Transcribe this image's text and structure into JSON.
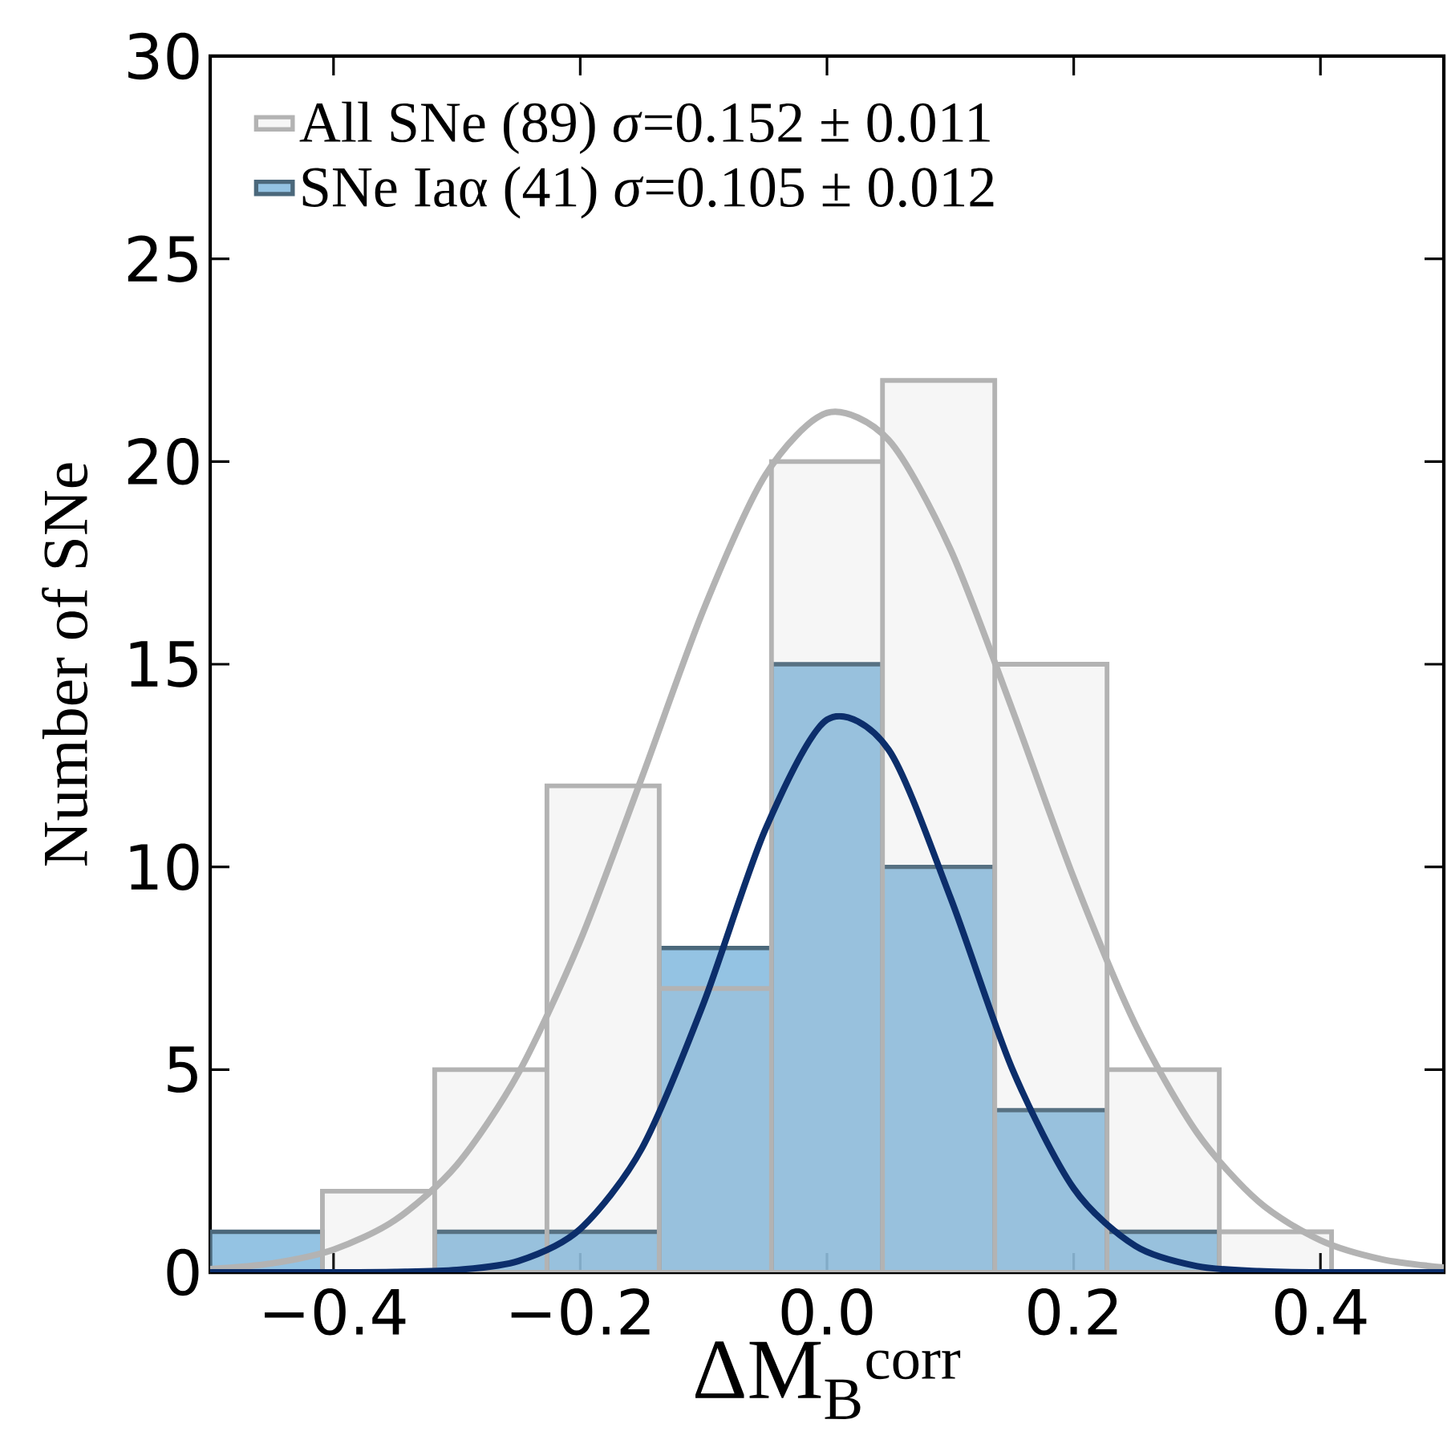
{
  "chart_data": {
    "type": "histogram",
    "xlabel": "ΔM$_{B}$$^{corr}$",
    "ylabel": "Number of SNe",
    "bins": [
      -0.5,
      -0.409,
      -0.318,
      -0.227,
      -0.136,
      -0.045,
      0.045,
      0.136,
      0.227,
      0.318,
      0.409
    ],
    "series": [
      {
        "name": "SNe Iaα (41)   *σ*=0.105 ± 0.012",
        "color": "#88bde0",
        "values": [
          1,
          0,
          1,
          1,
          8,
          15,
          10,
          4,
          1,
          0
        ]
      },
      {
        "name": "All  SNe (89)   *σ*=0.152 ± 0.011",
        "color": "#b3b3b3",
        "values": [
          0,
          2,
          5,
          12,
          7,
          20,
          22,
          15,
          5,
          1
        ]
      },
      {
        "type": "line",
        "color": "#b3b3b3",
        "x": [
          -0.5,
          -0.45,
          -0.4,
          -0.35,
          -0.3,
          -0.25,
          -0.2,
          -0.15,
          -0.1,
          -0.05,
          0,
          0.05,
          0.1,
          0.15,
          0.2,
          0.25,
          0.3,
          0.35,
          0.4,
          0.45,
          0.5
        ],
        "values": [
          0.08,
          0.22,
          0.56,
          1.29,
          2.65,
          4.92,
          8.18,
          12.21,
          16.35,
          19.66,
          21.2,
          20.53,
          17.84,
          13.9,
          9.73,
          6.11,
          3.44,
          1.74,
          0.79,
          0.32,
          0.12
        ]
      },
      {
        "type": "line",
        "color": "#0c2e6b",
        "x": [
          -0.5,
          -0.4,
          -0.35,
          -0.3,
          -0.25,
          -0.2,
          -0.15,
          -0.1,
          -0.05,
          0,
          0.05,
          0.1,
          0.15,
          0.2,
          0.25,
          0.3,
          0.35,
          0.4,
          0.5
        ],
        "values": [
          0,
          0,
          0.01,
          0.06,
          0.28,
          1.07,
          3.06,
          6.64,
          10.92,
          13.63,
          12.89,
          9.25,
          5.03,
          2.07,
          0.65,
          0.15,
          0.03,
          0,
          0
        ]
      }
    ],
    "xlim": [
      -0.5,
      0.5
    ],
    "ylim": [
      0,
      30
    ],
    "xticks": [
      {
        "value": -0.4,
        "label": "−0.4"
      },
      {
        "value": -0.2,
        "label": "−0.2"
      },
      {
        "value": 0,
        "label": "0.0"
      },
      {
        "value": 0.2,
        "label": "0.2"
      },
      {
        "value": 0.4,
        "label": "0.4"
      }
    ],
    "yticks": [
      0,
      5,
      10,
      15,
      20,
      25,
      30
    ],
    "legend": "top left"
  }
}
